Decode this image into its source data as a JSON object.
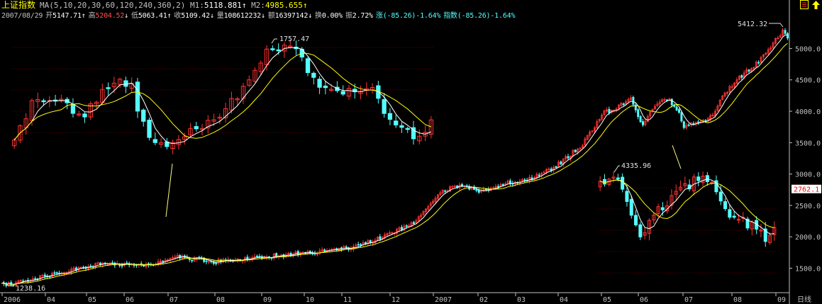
{
  "header": {
    "title": "上证指数",
    "ma_label": "MA(5,10,20,30,60,120,240,360,2)",
    "m1_label": "M1:",
    "m1_value": "5118.881",
    "m1_arrow": "↑",
    "m2_label": "M2:",
    "m2_value": "4985.655",
    "m2_arrow": "↑"
  },
  "quote": {
    "date": "2007/08/29",
    "open_label": "开",
    "open": "5147.71",
    "open_arrow": "↑",
    "high_label": "高",
    "high": "5204.52",
    "high_arrow": "↓",
    "low_label": "低",
    "low": "5063.41",
    "low_arrow": "↑",
    "close_label": "收",
    "close": "5109.42",
    "close_arrow": "↓",
    "volume_label": "量",
    "volume": "108612232",
    "volume_arrow": "↓",
    "amount_label": "额",
    "amount": "16397142",
    "amount_arrow": "↓",
    "turnover_label": "换",
    "turnover": "0.00%",
    "amplitude_label": "振",
    "amplitude": "2.72%",
    "change_label": "涨",
    "change": "(-85.26)-1.64%",
    "index_label": "指数",
    "index_change": "(-85.26)-1.64%"
  },
  "icons": {
    "settings": "settings-icon",
    "up_arrow": "up-arrow-icon"
  },
  "colors": {
    "background": "#000000",
    "up_candle": "#ff3232",
    "down_candle": "#54ffff",
    "ma_fast": "#ffffff",
    "ma_slow": "#ffff00",
    "axis": "#c0c0c0",
    "price_tag_bg": "#ffffff",
    "price_tag_text": "#ff0000"
  },
  "chart_data": [
    {
      "type": "candlestick",
      "name": "main",
      "x": [
        "2006",
        "04",
        "05",
        "06",
        "07",
        "08",
        "09",
        "10",
        "11",
        "12",
        "2007",
        "02",
        "03",
        "04",
        "05",
        "06",
        "07",
        "08",
        "09"
      ],
      "x_unit_label": "日线",
      "y_ticks": [
        1500.0,
        2000.0,
        2500.0,
        3000.0,
        3500.0,
        4000.0,
        4500.0,
        5000.0
      ],
      "ylim": [
        1150,
        5700
      ],
      "price_tag": "2762.1",
      "grid": false,
      "annotations": [
        {
          "text": "1238.16",
          "x": "2006-01",
          "y": 1238.16
        },
        {
          "text": "5412.32",
          "x": "2007-08",
          "y": 5412.32
        },
        {
          "text": "4335.96",
          "x": "2007-05",
          "y": 4335.96
        },
        {
          "text": "1757.47",
          "x": "2006-09",
          "y": 1757.47
        }
      ],
      "series": [
        {
          "name": "MA(5)",
          "kind": "ma"
        },
        {
          "name": "MA(10)",
          "kind": "ma"
        }
      ]
    }
  ]
}
